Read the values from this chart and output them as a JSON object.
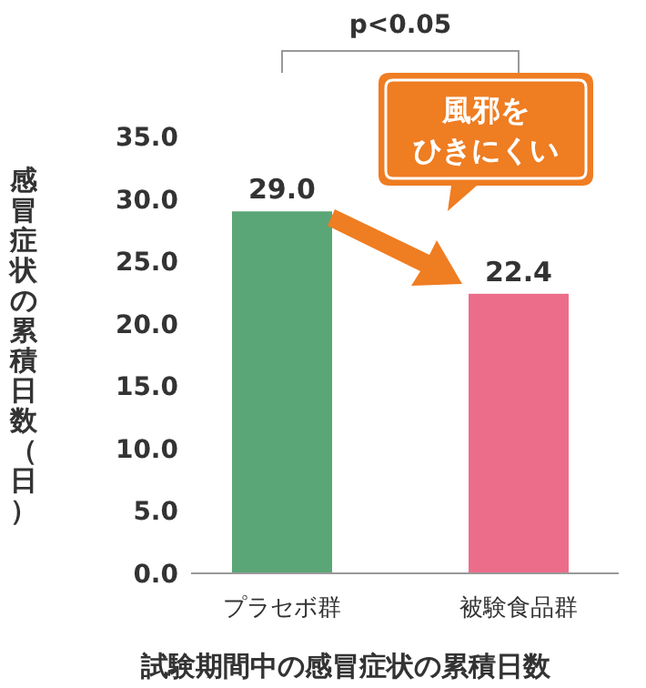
{
  "chart_data": {
    "type": "bar",
    "categories": [
      "プラセボ群",
      "被験食品群"
    ],
    "values": [
      29.0,
      22.4
    ],
    "value_labels": [
      "29.0",
      "22.4"
    ],
    "colors": [
      "#5aa676",
      "#ec6d8a"
    ],
    "ylim": [
      0,
      35
    ],
    "yticks": [
      {
        "value": 0,
        "label": "0.0"
      },
      {
        "value": 5,
        "label": "5.0"
      },
      {
        "value": 10,
        "label": "10.0"
      },
      {
        "value": 15,
        "label": "15.0"
      },
      {
        "value": 20,
        "label": "20.0"
      },
      {
        "value": 25,
        "label": "25.0"
      },
      {
        "value": 30,
        "label": "30.0"
      },
      {
        "value": 35,
        "label": "35.0"
      }
    ],
    "ylabel": "感冒症状の累積日数（日）",
    "xlabel": "試験期間中の感冒症状の累積日数",
    "annotations": [
      "p<0.05",
      "風邪を",
      "ひきにくい"
    ],
    "grid": false
  }
}
